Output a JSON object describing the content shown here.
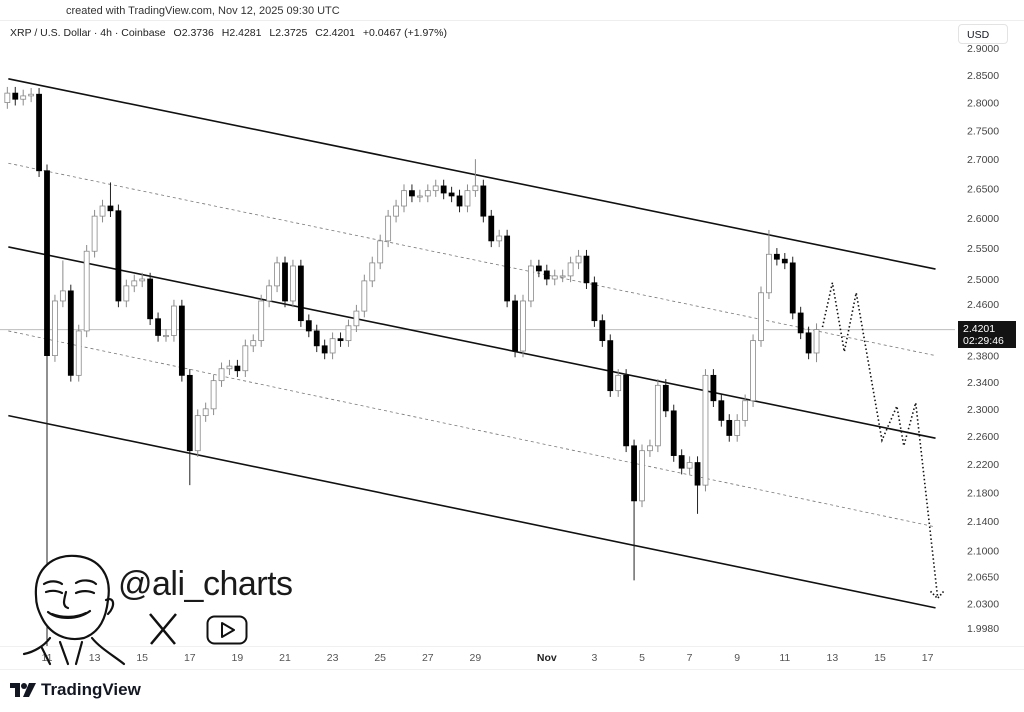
{
  "header": {
    "credit": "created with TradingView.com, Nov 12, 2025 09:30 UTC",
    "symbol": "XRP / U.S. Dollar · 4h · Coinbase",
    "open": "O2.3736",
    "high": "H2.4281",
    "low": "L2.3725",
    "close": "C2.4201",
    "change": "+0.0467 (+1.97%)"
  },
  "axis": {
    "currency": "USD",
    "current_price": "2.4201",
    "countdown": "02:29:46"
  },
  "watermark": {
    "handle": "@ali_charts",
    "icons": [
      "avatar-sketch",
      "x-logo-icon",
      "youtube-icon"
    ]
  },
  "footer": {
    "brand": "TradingView"
  },
  "chart_data": {
    "type": "candlestick",
    "symbol": "XRP/USD",
    "y_scale": "log",
    "ylim": [
      1.99,
      2.9
    ],
    "y_ticks": [
      "2.9000",
      "2.8500",
      "2.8000",
      "2.7500",
      "2.7000",
      "2.6500",
      "2.6000",
      "2.5500",
      "2.5000",
      "2.4600",
      "2.3800",
      "2.3400",
      "2.3000",
      "2.2600",
      "2.2200",
      "2.1800",
      "2.1400",
      "2.1000",
      "2.0650",
      "2.0300",
      "1.9980"
    ],
    "x_ticks": [
      {
        "label": "11",
        "date": "2025-10-11"
      },
      {
        "label": "13",
        "date": "2025-10-13"
      },
      {
        "label": "15",
        "date": "2025-10-15"
      },
      {
        "label": "17",
        "date": "2025-10-17"
      },
      {
        "label": "19",
        "date": "2025-10-19"
      },
      {
        "label": "21",
        "date": "2025-10-21"
      },
      {
        "label": "23",
        "date": "2025-10-23"
      },
      {
        "label": "25",
        "date": "2025-10-25"
      },
      {
        "label": "27",
        "date": "2025-10-27"
      },
      {
        "label": "29",
        "date": "2025-10-29"
      },
      {
        "label": "Nov",
        "date": "2025-11-01"
      },
      {
        "label": "3",
        "date": "2025-11-03"
      },
      {
        "label": "5",
        "date": "2025-11-05"
      },
      {
        "label": "7",
        "date": "2025-11-07"
      },
      {
        "label": "9",
        "date": "2025-11-09"
      },
      {
        "label": "11",
        "date": "2025-11-11"
      },
      {
        "label": "13",
        "date": "2025-11-13"
      },
      {
        "label": "15",
        "date": "2025-11-15"
      },
      {
        "label": "17",
        "date": "2025-11-17"
      }
    ],
    "first_candle": "2025-10-09 08:00",
    "first_open": 2.8,
    "closes": [
      2.817,
      2.806,
      2.812,
      2.815,
      2.68,
      2.38,
      2.465,
      2.481,
      2.35,
      2.418,
      2.545,
      2.603,
      2.62,
      2.612,
      2.465,
      2.489,
      2.497,
      2.5,
      2.437,
      2.411,
      2.411,
      2.457,
      2.35,
      2.239,
      2.29,
      2.3,
      2.342,
      2.36,
      2.364,
      2.357,
      2.395,
      2.403,
      2.465,
      2.489,
      2.526,
      2.465,
      2.521,
      2.434,
      2.418,
      2.395,
      2.384,
      2.406,
      2.403,
      2.426,
      2.449,
      2.497,
      2.526,
      2.562,
      2.603,
      2.62,
      2.646,
      2.637,
      2.637,
      2.646,
      2.654,
      2.642,
      2.637,
      2.62,
      2.646,
      2.654,
      2.603,
      2.562,
      2.57,
      2.465,
      2.387,
      2.465,
      2.521,
      2.513,
      2.5,
      2.505,
      2.505,
      2.526,
      2.537,
      2.494,
      2.434,
      2.403,
      2.327,
      2.35,
      2.246,
      2.168,
      2.239,
      2.246,
      2.335,
      2.297,
      2.232,
      2.214,
      2.222,
      2.19,
      2.35,
      2.312,
      2.283,
      2.261,
      2.283,
      2.312,
      2.403,
      2.478,
      2.54,
      2.532,
      2.526,
      2.446,
      2.415,
      2.384,
      2.4201
    ],
    "wick_extremes": [
      {
        "candle": 5,
        "low": 1.97
      },
      {
        "candle": 7,
        "high": 2.53
      },
      {
        "candle": 13,
        "high": 2.66
      },
      {
        "candle": 23,
        "low": 2.19
      },
      {
        "candle": 59,
        "high": 2.7
      },
      {
        "candle": 79,
        "low": 2.06
      },
      {
        "candle": 87,
        "low": 2.15
      },
      {
        "candle": 96,
        "high": 2.58
      },
      {
        "candle": 102,
        "low": 2.37
      }
    ],
    "channel_lines": [
      {
        "style": "solid",
        "from": {
          "date": "2025-10-09 09:00",
          "price": 2.843
        },
        "to": {
          "date": "2025-11-17 08:00",
          "price": 2.516
        }
      },
      {
        "style": "dashed",
        "from": {
          "date": "2025-10-09 09:00",
          "price": 2.693
        },
        "to": {
          "date": "2025-11-17 08:00",
          "price": 2.38
        }
      },
      {
        "style": "solid",
        "from": {
          "date": "2025-10-09 09:00",
          "price": 2.552
        },
        "to": {
          "date": "2025-11-17 08:00",
          "price": 2.257
        }
      },
      {
        "style": "dashed",
        "from": {
          "date": "2025-10-09 09:00",
          "price": 2.418
        },
        "to": {
          "date": "2025-11-17 08:00",
          "price": 2.132
        }
      },
      {
        "style": "solid",
        "from": {
          "date": "2025-10-09 09:00",
          "price": 2.29
        },
        "to": {
          "date": "2025-11-17 08:00",
          "price": 2.024
        }
      }
    ],
    "projection_path": [
      {
        "date": "2025-11-12 14:00",
        "price": 2.424
      },
      {
        "date": "2025-11-13 00:00",
        "price": 2.494
      },
      {
        "date": "2025-11-13 12:00",
        "price": 2.386
      },
      {
        "date": "2025-11-14 00:00",
        "price": 2.478
      },
      {
        "date": "2025-11-15 02:00",
        "price": 2.254
      },
      {
        "date": "2025-11-15 17:00",
        "price": 2.304
      },
      {
        "date": "2025-11-16 00:00",
        "price": 2.246
      },
      {
        "date": "2025-11-16 12:00",
        "price": 2.309
      },
      {
        "date": "2025-11-17 10:00",
        "price": 2.039
      }
    ],
    "colors": {
      "up_body": "#ffffff",
      "up_border": "#8a8a8a",
      "down": "#000000",
      "lines": "#111111",
      "price_line": "#bdbdbd"
    }
  }
}
